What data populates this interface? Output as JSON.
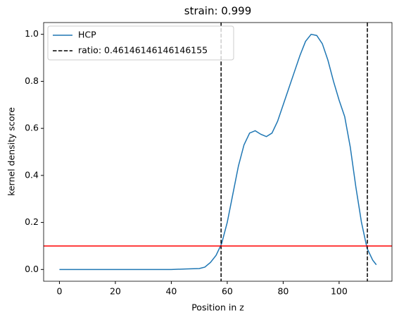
{
  "chart_data": {
    "type": "line",
    "title": "strain: 0.999",
    "xlabel": "Position in z",
    "ylabel": "kernel density score",
    "xlim": [
      -5.65,
      118.9
    ],
    "ylim": [
      -0.05,
      1.05
    ],
    "xticks": [
      0,
      20,
      40,
      60,
      80,
      100
    ],
    "yticks": [
      {
        "value": 0,
        "label": "0.0"
      },
      {
        "value": 0.2,
        "label": "0.2"
      },
      {
        "value": 0.4,
        "label": "0.4"
      },
      {
        "value": 0.6,
        "label": "0.6"
      },
      {
        "value": 0.8,
        "label": "0.8"
      },
      {
        "value": 1,
        "label": "1.0"
      }
    ],
    "legend": "upper left",
    "series": [
      {
        "name": "HCP",
        "color": "#1f77b4",
        "x": [
          0,
          10,
          20,
          30,
          40,
          45,
          50,
          52,
          54,
          56,
          58,
          60,
          62,
          64,
          66,
          68,
          70,
          72,
          74,
          76,
          78,
          80,
          82,
          84,
          86,
          88,
          90,
          92,
          94,
          96,
          98,
          100,
          102,
          104,
          106,
          108,
          110,
          112,
          113.3
        ],
        "values": [
          0,
          0,
          0,
          0,
          0,
          0.002,
          0.004,
          0.01,
          0.03,
          0.06,
          0.11,
          0.2,
          0.32,
          0.44,
          0.53,
          0.58,
          0.59,
          0.575,
          0.565,
          0.58,
          0.63,
          0.7,
          0.77,
          0.84,
          0.91,
          0.97,
          1.0,
          0.995,
          0.96,
          0.89,
          0.8,
          0.72,
          0.65,
          0.52,
          0.35,
          0.2,
          0.09,
          0.04,
          0.02
        ]
      }
    ],
    "vlines": {
      "name": "ratio: 0.46146146146146155",
      "color": "#000000",
      "values": [
        57.8,
        110.1
      ]
    },
    "hline": {
      "value": 0.1,
      "color": "#ff0000"
    }
  }
}
